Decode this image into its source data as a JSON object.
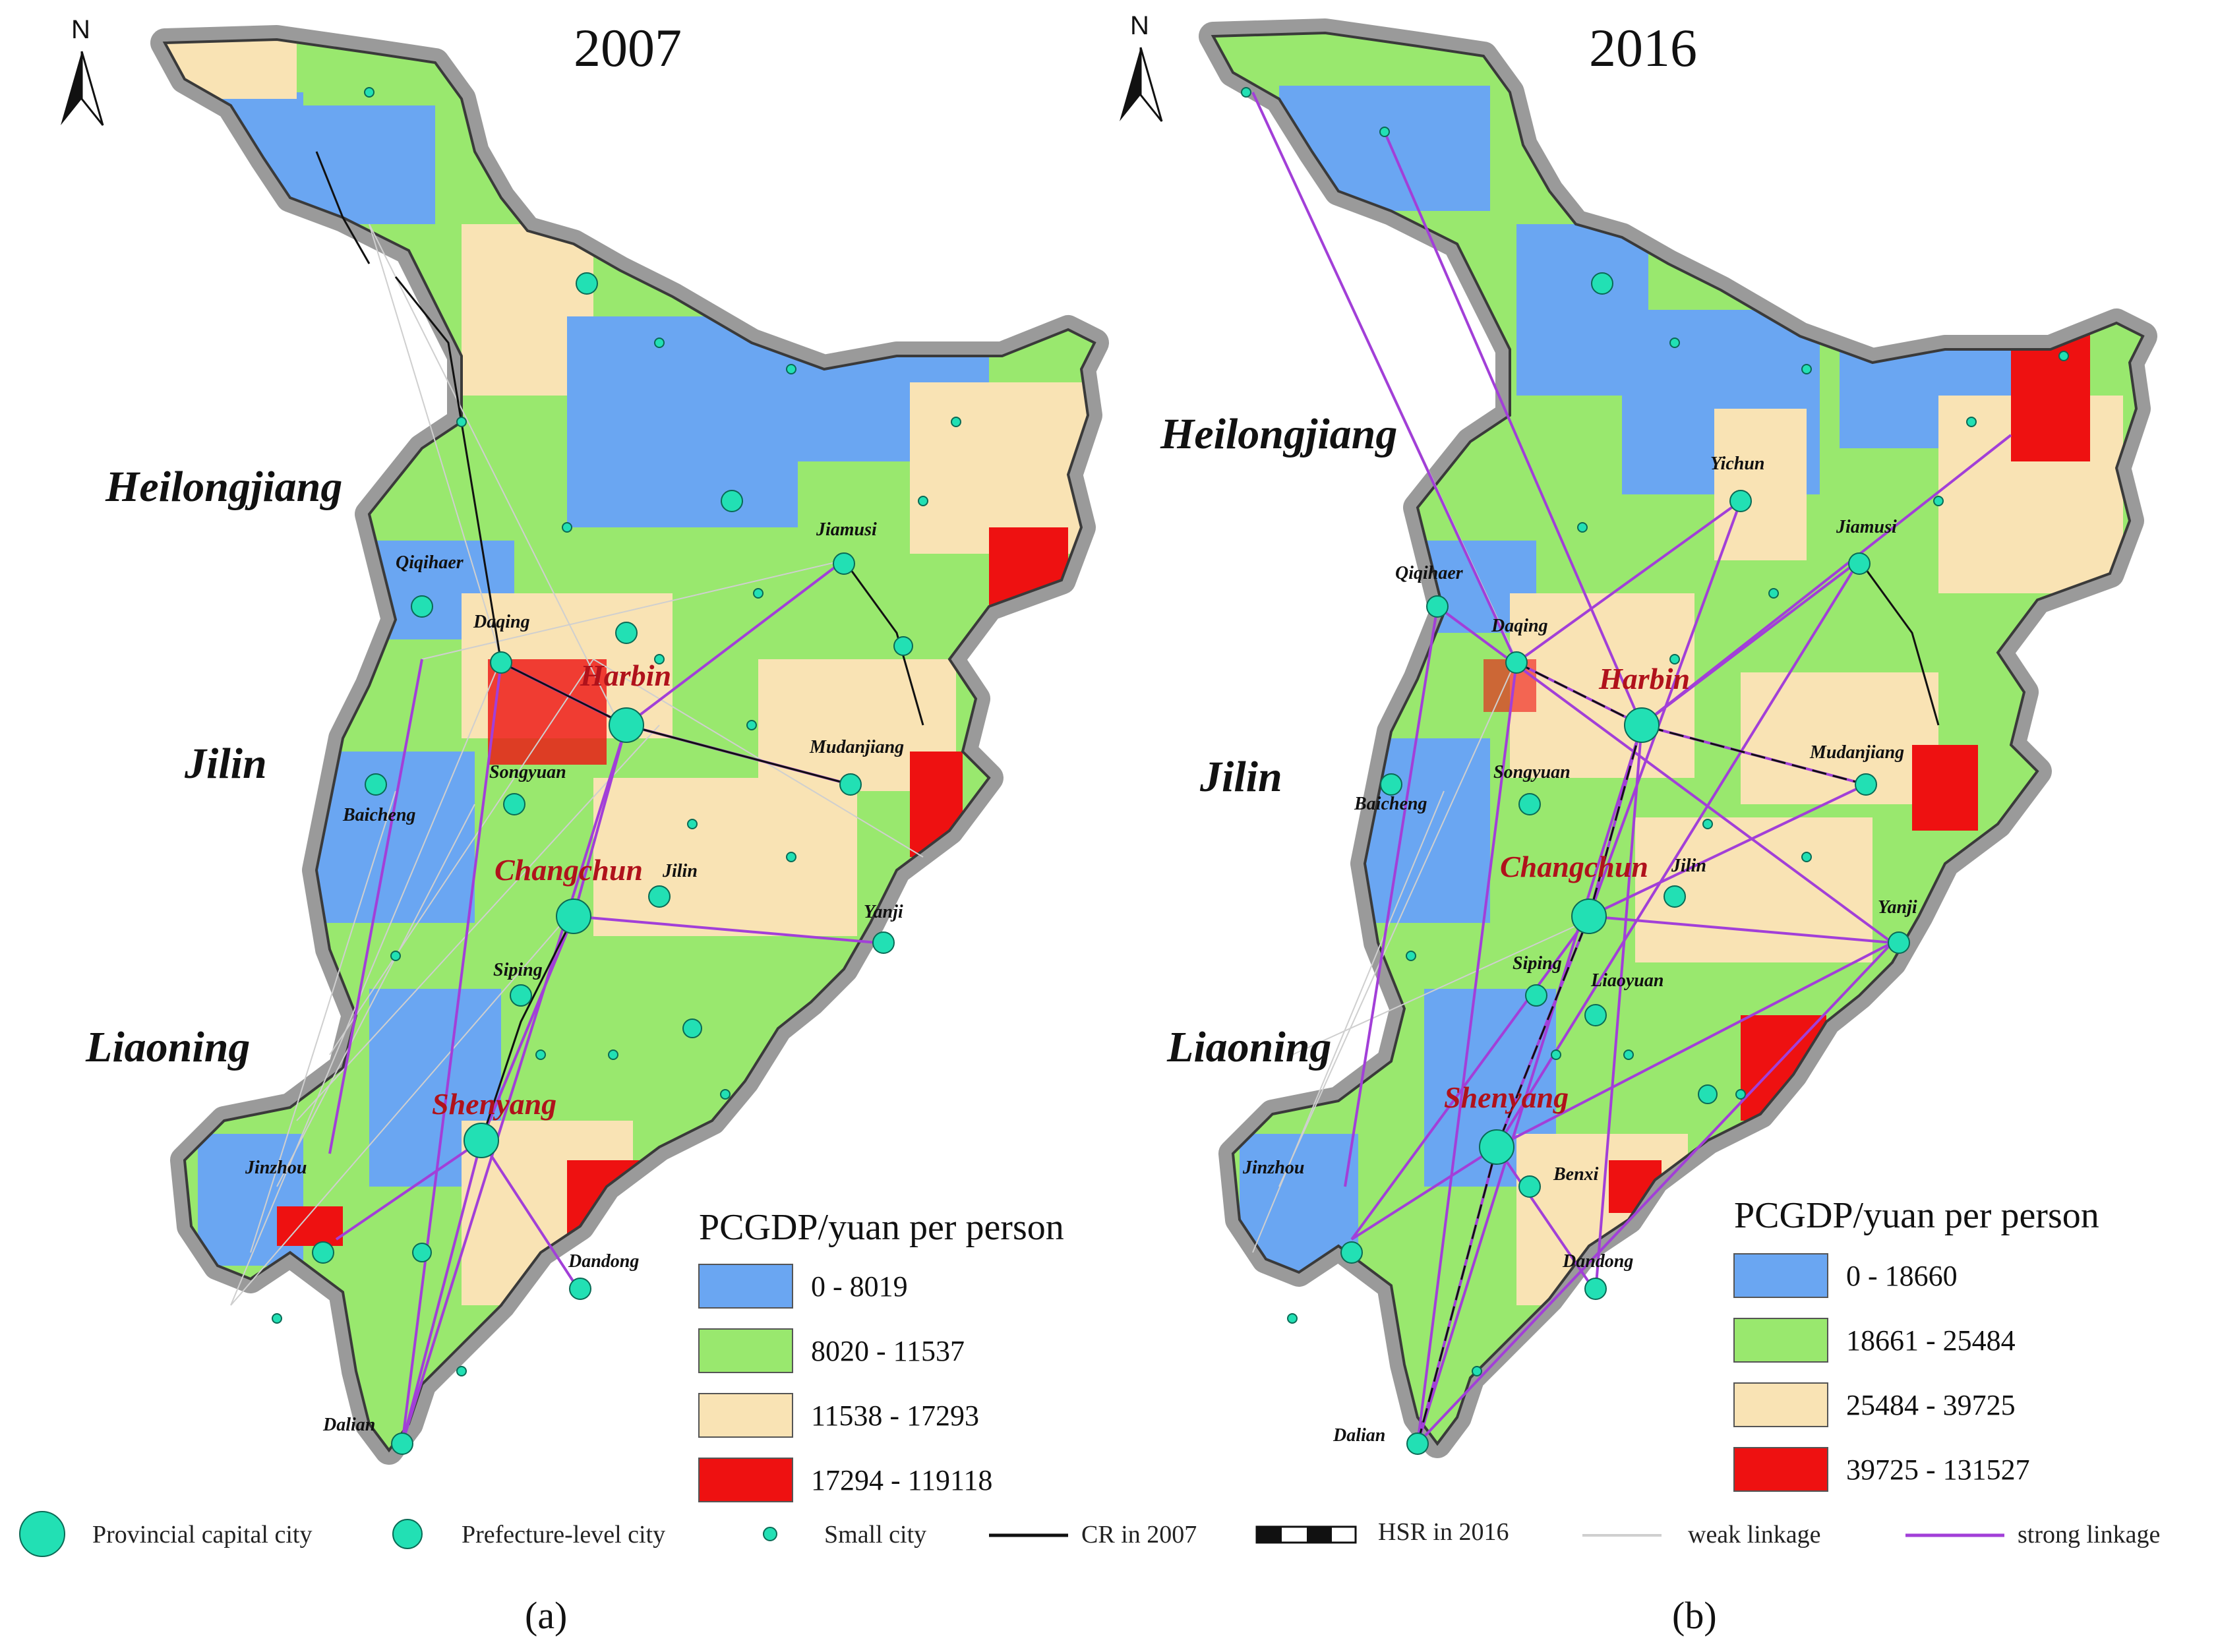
{
  "panels": [
    {
      "id": "a",
      "year_title": "2007",
      "sub_label": "(a)",
      "north_label": "N",
      "provinces": [
        "Heilongjiang",
        "Jilin",
        "Liaoning"
      ],
      "capitals": [
        "Harbin",
        "Changchun",
        "Shenyang"
      ],
      "prefecture_labels": [
        "Qiqihaer",
        "Daqing",
        "Jiamusi",
        "Mudanjiang",
        "Songyuan",
        "Baicheng",
        "Jilin",
        "Yanji",
        "Siping",
        "Jinzhou",
        "Dandong",
        "Dalian"
      ],
      "legend": {
        "title": "PCGDP/yuan per person",
        "classes": [
          {
            "label": "0 - 8019",
            "color": "#6aa6f2"
          },
          {
            "label": "8020 - 11537",
            "color": "#99e86e"
          },
          {
            "label": "11538 - 17293",
            "color": "#f9e3b4"
          },
          {
            "label": "17294 - 119118",
            "color": "#ee1111"
          }
        ]
      }
    },
    {
      "id": "b",
      "year_title": "2016",
      "sub_label": "(b)",
      "north_label": "N",
      "provinces": [
        "Heilongjiang",
        "Jilin",
        "Liaoning"
      ],
      "capitals": [
        "Harbin",
        "Changchun",
        "Shenyang"
      ],
      "prefecture_labels": [
        "Yichun",
        "Qiqihaer",
        "Jiamusi",
        "Daqing",
        "Mudanjiang",
        "Songyuan",
        "Baicheng",
        "Jilin",
        "Yanji",
        "Siping",
        "Liaoyuan",
        "Jinzhou",
        "Benxi",
        "Dandong",
        "Dalian"
      ],
      "legend": {
        "title": "PCGDP/yuan per person",
        "classes": [
          {
            "label": "0 - 18660",
            "color": "#6aa6f2"
          },
          {
            "label": "18661 - 25484",
            "color": "#99e86e"
          },
          {
            "label": "25484 - 39725",
            "color": "#f9e3b4"
          },
          {
            "label": "39725 - 131527",
            "color": "#ee1111"
          }
        ]
      }
    }
  ],
  "bottom_legend": {
    "provincial_capital": "Provincial capital city",
    "prefecture_city": "Prefecture-level city",
    "small_city": "Small city",
    "cr_2007": "CR in 2007",
    "hsr_2016": "HSR in 2016",
    "weak": "weak linkage",
    "strong": "strong linkage"
  },
  "colors": {
    "class1": "#6aa6f2",
    "class2": "#99e86e",
    "class3": "#f9e3b4",
    "class4": "#ee1111",
    "city_fill": "#22e0b4",
    "strong_link": "#a23fd8",
    "weak_link": "#cfcfcf",
    "capital_label": "#b0121b"
  }
}
